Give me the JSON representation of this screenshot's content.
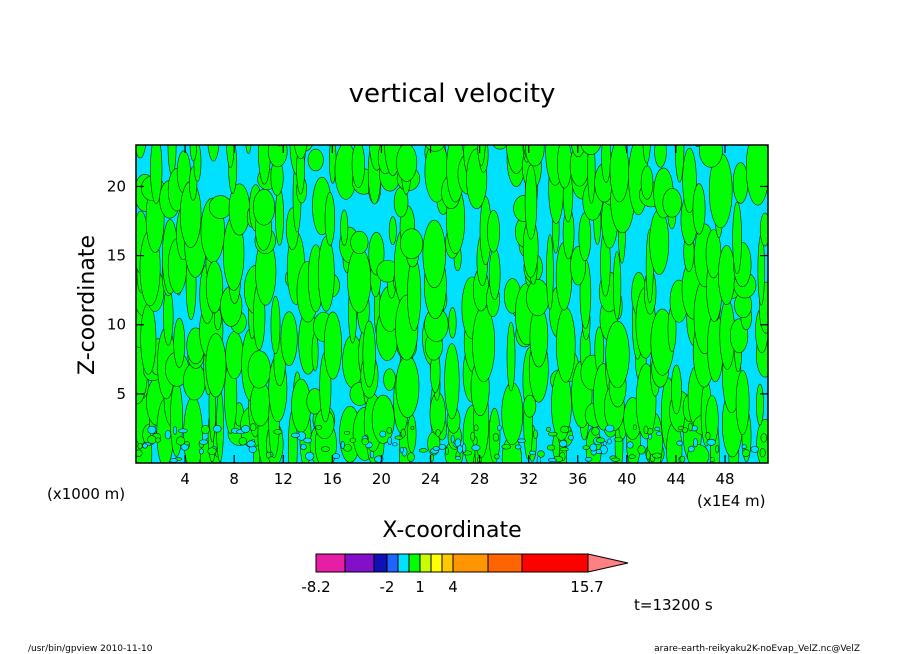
{
  "chart_data": {
    "type": "heatmap",
    "title": "vertical velocity",
    "xlabel": "X-coordinate",
    "ylabel": "Z-coordinate",
    "x_unit_left": "(x1000 m)",
    "x_unit_right": "(x1E4 m)",
    "xlim": [
      0,
      51.5
    ],
    "ylim": [
      0,
      23
    ],
    "x_ticks": [
      4,
      8,
      12,
      16,
      20,
      24,
      28,
      32,
      36,
      40,
      44,
      48
    ],
    "y_ticks": [
      5,
      10,
      15,
      20
    ],
    "dominant_fields": [
      "green (positive, 0 to 1)",
      "cyan (negative, -1 to 0)"
    ],
    "colorbar": {
      "levels": [
        -8.2,
        -6,
        -4,
        -3,
        -2,
        -1,
        0,
        1,
        2,
        3,
        4,
        6,
        8,
        11,
        15.7
      ],
      "labels": [
        "-8.2",
        "-2",
        "1",
        "4",
        "15.7"
      ],
      "colors": [
        "#e61ea5",
        "#8210c8",
        "#1010b4",
        "#1e64ff",
        "#00e1ff",
        "#00ff00",
        "#c8ff00",
        "#ffff00",
        "#ffc800",
        "#ff9600",
        "#ff6400",
        "#ff0000",
        "#ff8080",
        "#ffb4b4"
      ]
    },
    "time_label": "t=13200 s",
    "footer_left": "/usr/bin/gpview   2010-11-10",
    "footer_right": "arare-earth-reikyaku2K-noEvap_VelZ.nc@VelZ"
  }
}
